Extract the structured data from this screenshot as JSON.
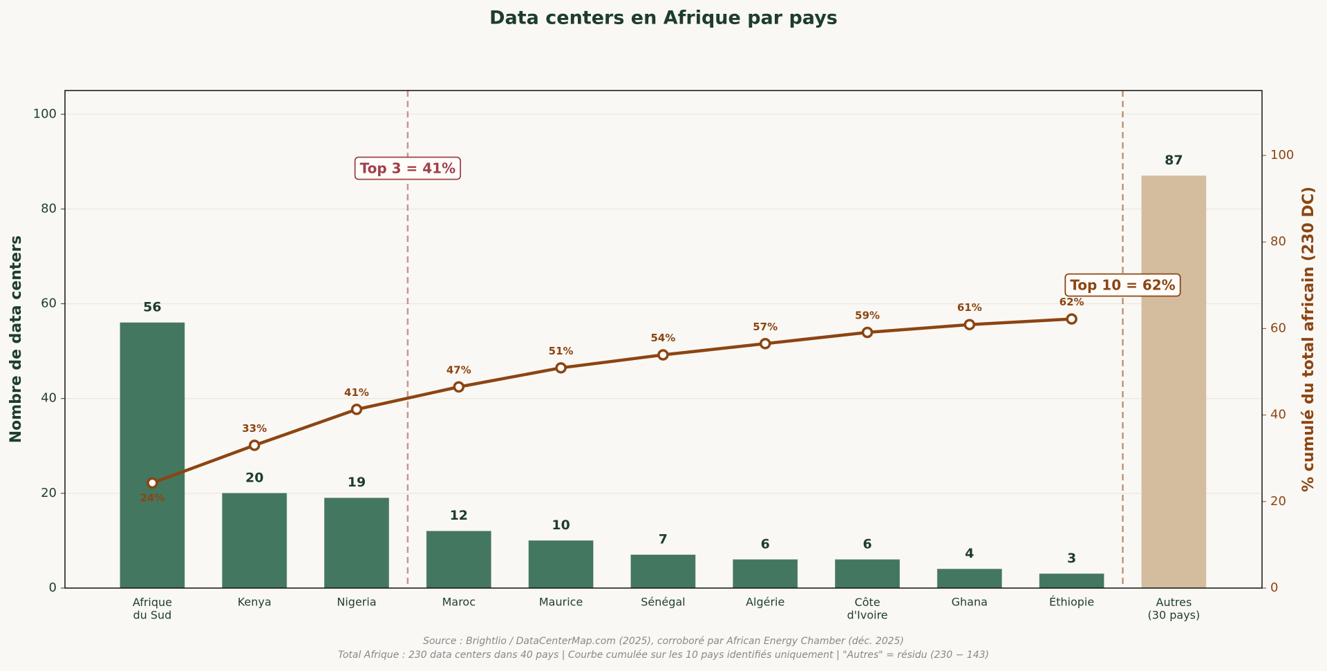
{
  "chart_data": {
    "type": "bar",
    "title": "Data centers en Afrique par pays",
    "ylabel": "Nombre de data centers",
    "y2label": "% cumulé du total africain (230 DC)",
    "categories": [
      "Afrique\ndu Sud",
      "Kenya",
      "Nigeria",
      "Maroc",
      "Maurice",
      "Sénégal",
      "Algérie",
      "Côte\nd'Ivoire",
      "Ghana",
      "Éthiopie",
      "Autres\n(30 pays)"
    ],
    "series": [
      {
        "type": "bar",
        "values": [
          56,
          20,
          19,
          12,
          10,
          7,
          6,
          6,
          4,
          3,
          87
        ],
        "colors": [
          "#44775f",
          "#44775f",
          "#44775f",
          "#44775f",
          "#44775f",
          "#44775f",
          "#44775f",
          "#44775f",
          "#44775f",
          "#44775f",
          "#d4bc9f"
        ]
      },
      {
        "type": "line",
        "axis": "y2",
        "color": "#8b4513",
        "values": [
          24.3,
          33.0,
          41.3,
          46.5,
          50.9,
          53.9,
          56.5,
          59.1,
          60.9,
          62.2,
          null
        ],
        "value_labels": [
          "24%",
          "33%",
          "41%",
          "47%",
          "51%",
          "54%",
          "57%",
          "59%",
          "61%",
          "62%",
          null
        ]
      }
    ],
    "ylim": [
      0,
      105
    ],
    "yticks": [
      0,
      20,
      40,
      60,
      80,
      100
    ],
    "y2lim": [
      0,
      115
    ],
    "y2ticks": [
      0,
      20,
      40,
      60,
      80,
      100
    ],
    "grid": true,
    "annotations": [
      {
        "text": "Top 3 = 41%",
        "color": "#a0404a"
      },
      {
        "text": "Top 10 = 62%",
        "color": "#8b4513"
      }
    ],
    "source": [
      "Source : Brightlio / DataCenterMap.com (2025), corroboré par African Energy Chamber (déc. 2025)",
      "Total Afrique : 230 data centers dans 40 pays | Courbe cumulée sur les 10 pays identifiés uniquement | \"Autres\" = résidu (230 − 143)"
    ]
  }
}
